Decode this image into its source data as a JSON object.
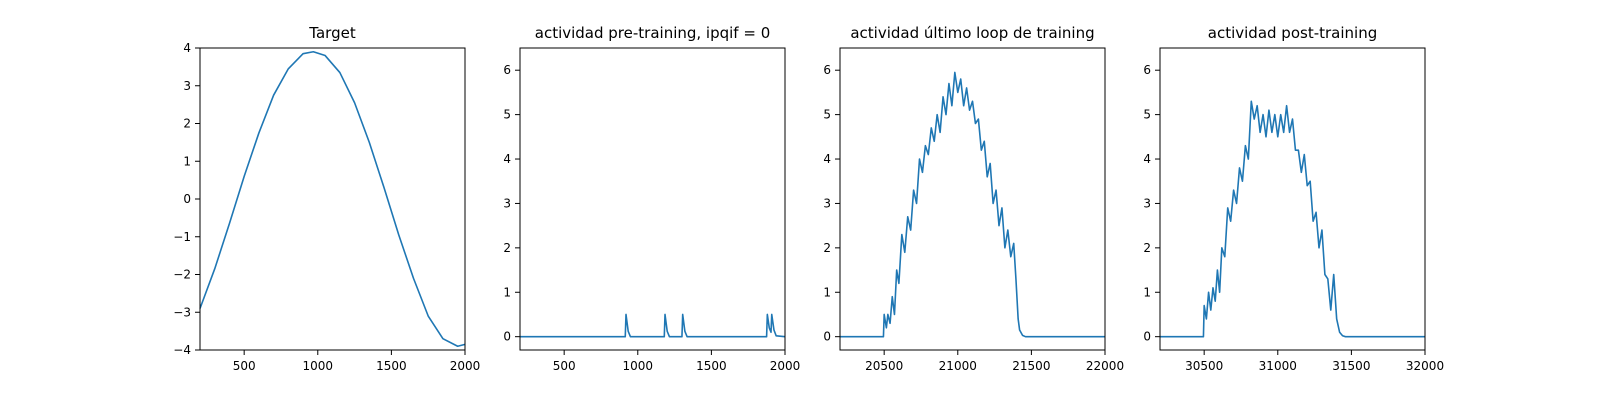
{
  "style": {
    "line_color": "#1f77b4"
  },
  "chart_data": [
    {
      "type": "line",
      "title": "Target",
      "xlim": [
        200,
        2000
      ],
      "ylim": [
        -4,
        4
      ],
      "xticks": [
        500,
        1000,
        1500,
        2000
      ],
      "yticks": [
        -4,
        -3,
        -2,
        -1,
        0,
        1,
        2,
        3,
        4
      ],
      "xtick_labels": [
        "500",
        "1000",
        "1500",
        "2000"
      ],
      "ytick_labels": [
        "−4",
        "−3",
        "−2",
        "−1",
        "0",
        "1",
        "2",
        "3",
        "4"
      ],
      "series": [
        {
          "x": [
            200,
            300,
            400,
            500,
            600,
            700,
            800,
            900,
            970,
            1050,
            1150,
            1250,
            1350,
            1450,
            1550,
            1650,
            1750,
            1850,
            1950,
            2000
          ],
          "y": [
            -2.9,
            -1.85,
            -0.65,
            0.6,
            1.75,
            2.75,
            3.45,
            3.85,
            3.9,
            3.8,
            3.35,
            2.55,
            1.5,
            0.3,
            -0.95,
            -2.1,
            -3.1,
            -3.7,
            -3.9,
            -3.85
          ]
        }
      ]
    },
    {
      "type": "line",
      "title": "actividad pre-training, ipqif = 0",
      "xlim": [
        200,
        2000
      ],
      "ylim": [
        -0.3,
        6.5
      ],
      "xticks": [
        500,
        1000,
        1500,
        2000
      ],
      "yticks": [
        0,
        1,
        2,
        3,
        4,
        5,
        6
      ],
      "xtick_labels": [
        "500",
        "1000",
        "1500",
        "2000"
      ],
      "ytick_labels": [
        "0",
        "1",
        "2",
        "3",
        "4",
        "5",
        "6"
      ],
      "series": [
        {
          "x": [
            200,
            915,
            920,
            935,
            950,
            1180,
            1185,
            1200,
            1215,
            1300,
            1305,
            1320,
            1335,
            1875,
            1880,
            1893,
            1905,
            1910,
            1925,
            1940,
            2000
          ],
          "y": [
            0,
            0,
            0.5,
            0.12,
            0,
            0,
            0.5,
            0.12,
            0,
            0,
            0.5,
            0.12,
            0,
            0,
            0.5,
            0.2,
            0.1,
            0.5,
            0.15,
            0.02,
            0
          ]
        }
      ]
    },
    {
      "type": "line",
      "title": "actividad último loop de training",
      "xlim": [
        20200,
        22000
      ],
      "ylim": [
        -0.3,
        6.5
      ],
      "xticks": [
        20500,
        21000,
        21500,
        22000
      ],
      "yticks": [
        0,
        1,
        2,
        3,
        4,
        5,
        6
      ],
      "xtick_labels": [
        "20500",
        "21000",
        "21500",
        "22000"
      ],
      "ytick_labels": [
        "0",
        "1",
        "2",
        "3",
        "4",
        "5",
        "6"
      ],
      "series": [
        {
          "x": [
            20200,
            20495,
            20500,
            20515,
            20525,
            20540,
            20555,
            20570,
            20585,
            20600,
            20620,
            20640,
            20660,
            20680,
            20700,
            20720,
            20740,
            20760,
            20780,
            20800,
            20820,
            20840,
            20860,
            20880,
            20900,
            20920,
            20940,
            20960,
            20980,
            21000,
            21020,
            21040,
            21060,
            21080,
            21100,
            21120,
            21140,
            21160,
            21180,
            21200,
            21220,
            21240,
            21260,
            21280,
            21300,
            21320,
            21340,
            21360,
            21380,
            21395,
            21410,
            21420,
            21440,
            21460,
            21480,
            21500,
            22000
          ],
          "y": [
            0,
            0,
            0.5,
            0.2,
            0.5,
            0.3,
            0.9,
            0.5,
            1.5,
            1.2,
            2.3,
            1.9,
            2.7,
            2.4,
            3.3,
            3.0,
            4.0,
            3.7,
            4.3,
            4.1,
            4.7,
            4.4,
            5.0,
            4.6,
            5.4,
            5.0,
            5.7,
            5.2,
            5.95,
            5.5,
            5.8,
            5.2,
            5.6,
            5.1,
            5.3,
            4.8,
            4.9,
            4.2,
            4.4,
            3.6,
            3.9,
            3.0,
            3.3,
            2.5,
            2.9,
            2.0,
            2.4,
            1.8,
            2.1,
            1.3,
            0.4,
            0.15,
            0.03,
            0,
            0,
            0,
            0
          ]
        }
      ]
    },
    {
      "type": "line",
      "title": "actividad post-training",
      "xlim": [
        30200,
        32000
      ],
      "ylim": [
        -0.3,
        6.5
      ],
      "xticks": [
        30500,
        31000,
        31500,
        32000
      ],
      "yticks": [
        0,
        1,
        2,
        3,
        4,
        5,
        6
      ],
      "xtick_labels": [
        "30500",
        "31000",
        "31500",
        "32000"
      ],
      "ytick_labels": [
        "0",
        "1",
        "2",
        "3",
        "4",
        "5",
        "6"
      ],
      "series": [
        {
          "x": [
            30200,
            30495,
            30500,
            30515,
            30530,
            30545,
            30560,
            30575,
            30590,
            30605,
            30620,
            30640,
            30660,
            30680,
            30700,
            30720,
            30740,
            30760,
            30780,
            30800,
            30820,
            30840,
            30860,
            30880,
            30900,
            30920,
            30940,
            30960,
            30980,
            31000,
            31020,
            31040,
            31060,
            31080,
            31100,
            31120,
            31140,
            31160,
            31180,
            31200,
            31220,
            31240,
            31260,
            31280,
            31300,
            31320,
            31340,
            31360,
            31380,
            31400,
            31420,
            31440,
            31460,
            31480,
            32000
          ],
          "y": [
            0,
            0,
            0.7,
            0.4,
            1.0,
            0.6,
            1.1,
            0.8,
            1.5,
            1.0,
            2.0,
            1.8,
            2.9,
            2.6,
            3.3,
            3.0,
            3.8,
            3.5,
            4.3,
            4.0,
            5.3,
            4.9,
            5.2,
            4.6,
            5.0,
            4.5,
            5.1,
            4.6,
            5.0,
            4.5,
            5.0,
            4.6,
            5.2,
            4.6,
            4.9,
            4.2,
            4.2,
            3.7,
            4.1,
            3.4,
            3.5,
            2.6,
            2.8,
            2.0,
            2.4,
            1.4,
            1.3,
            0.6,
            1.4,
            0.4,
            0.1,
            0.02,
            0,
            0,
            0
          ]
        }
      ]
    }
  ]
}
